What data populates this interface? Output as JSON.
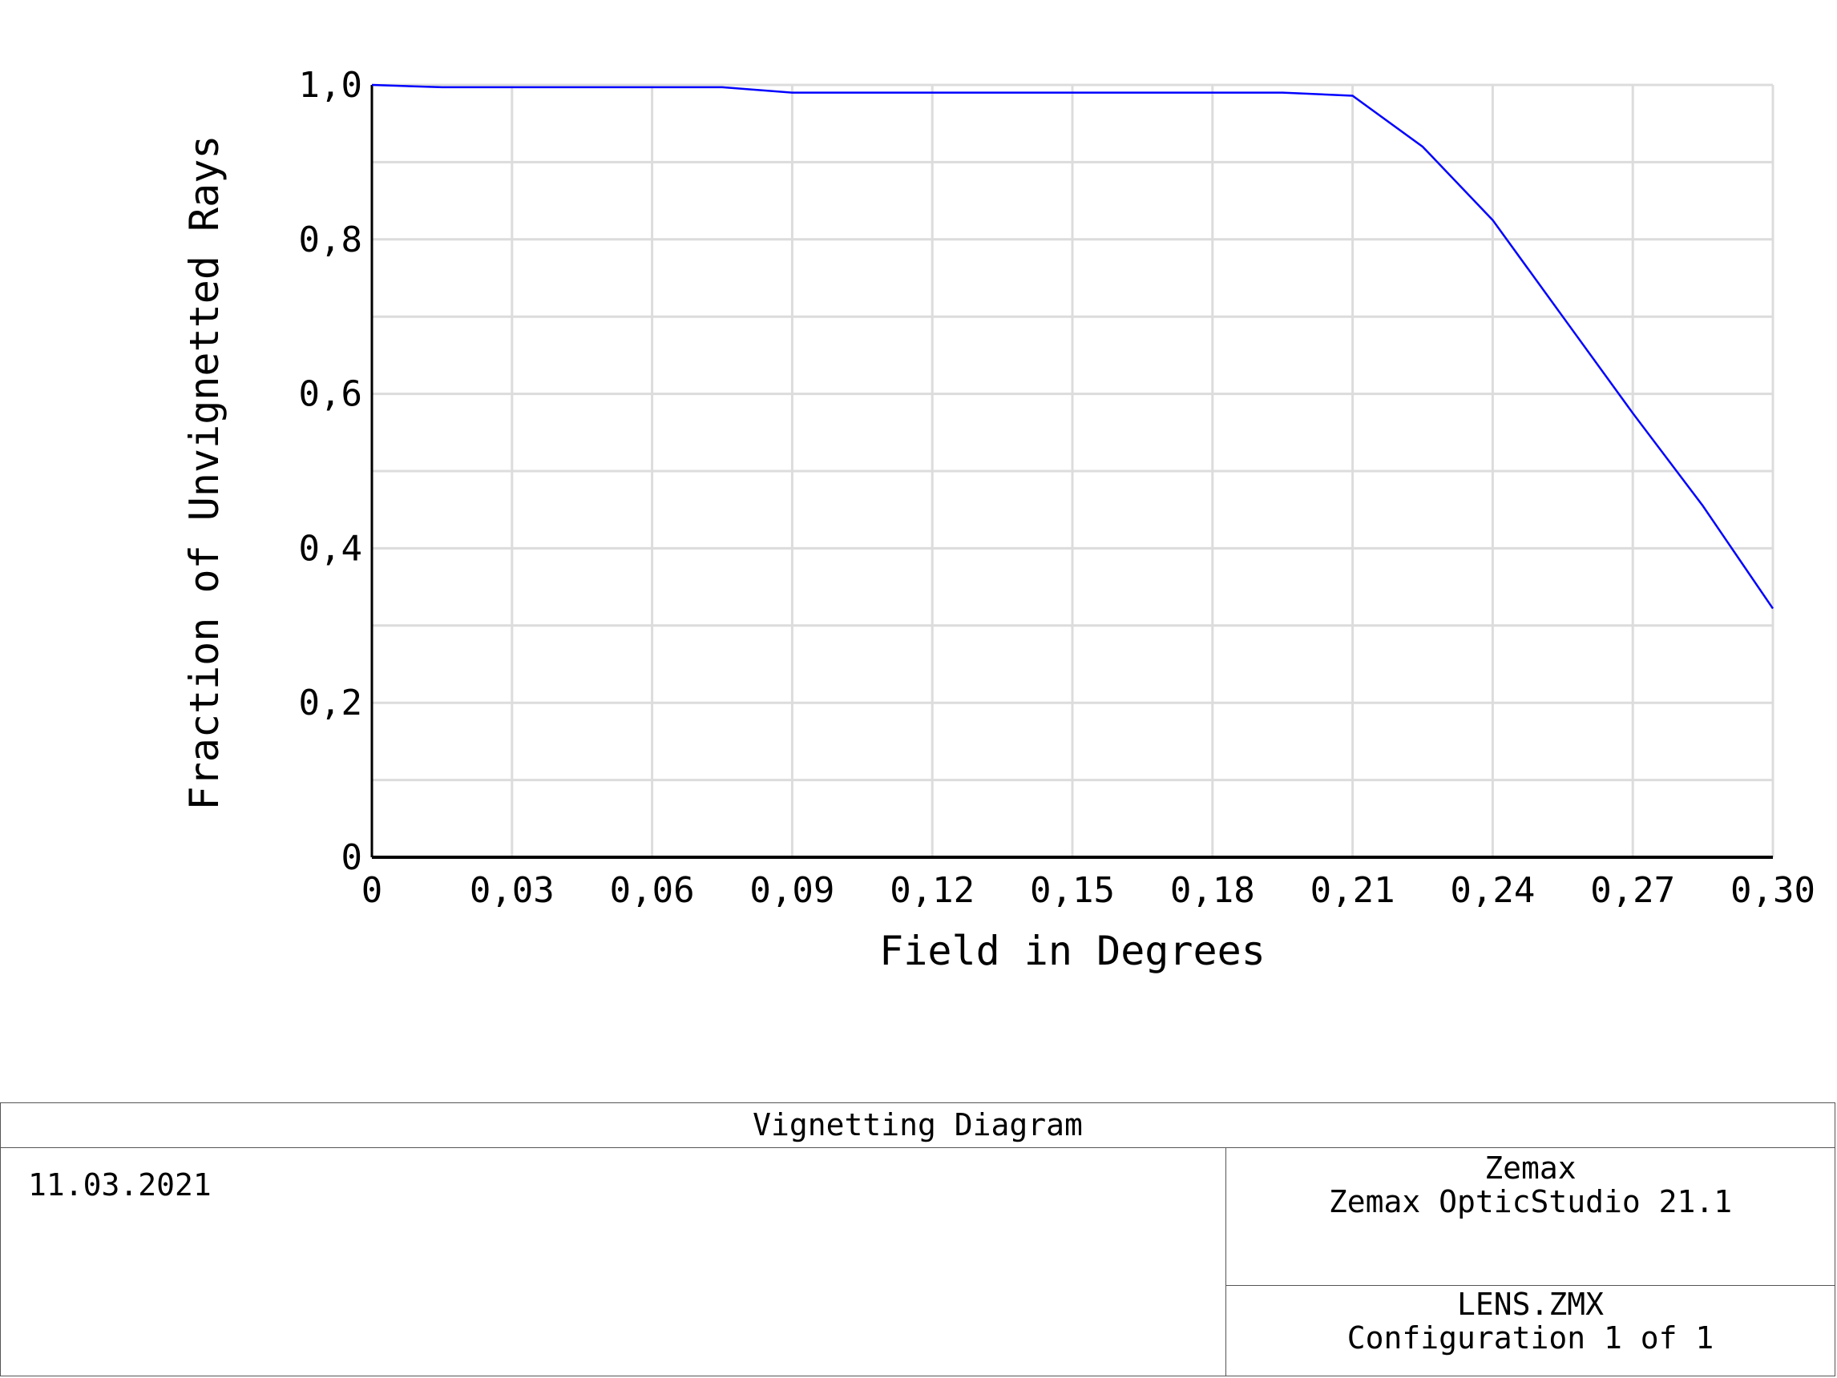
{
  "chart_data": {
    "type": "line",
    "title": "Vignetting Diagram",
    "xlabel": "Field in Degrees",
    "ylabel": "Fraction of Unvignetted Rays",
    "xlim": [
      0,
      0.3
    ],
    "ylim": [
      0,
      1.0
    ],
    "x_ticks": [
      0,
      0.03,
      0.06,
      0.09,
      0.12,
      0.15,
      0.18,
      0.21,
      0.24,
      0.27,
      0.3
    ],
    "x_tick_labels": [
      "0",
      "0,03",
      "0,06",
      "0,09",
      "0,12",
      "0,15",
      "0,18",
      "0,21",
      "0,24",
      "0,27",
      "0,30"
    ],
    "y_ticks": [
      0,
      0.2,
      0.4,
      0.6,
      0.8,
      1.0
    ],
    "y_tick_labels": [
      "0",
      "0,2",
      "0,4",
      "0,6",
      "0,8",
      "1,0"
    ],
    "grid": true,
    "series": [
      {
        "color": "#0000ff",
        "x": [
          0,
          0.015,
          0.03,
          0.045,
          0.06,
          0.075,
          0.09,
          0.105,
          0.12,
          0.135,
          0.15,
          0.165,
          0.18,
          0.195,
          0.21,
          0.225,
          0.24,
          0.255,
          0.27,
          0.285,
          0.3
        ],
        "y": [
          1.0,
          0.997,
          0.997,
          0.997,
          0.997,
          0.997,
          0.99,
          0.99,
          0.99,
          0.99,
          0.99,
          0.99,
          0.99,
          0.99,
          0.986,
          0.92,
          0.825,
          0.7,
          0.575,
          0.455,
          0.322
        ]
      }
    ]
  },
  "footer": {
    "title": "Vignetting Diagram",
    "date": "11.03.2021",
    "company": "Zemax",
    "software": "Zemax OpticStudio 21.1",
    "file": "LENS.ZMX",
    "configuration": "Configuration 1 of 1"
  }
}
